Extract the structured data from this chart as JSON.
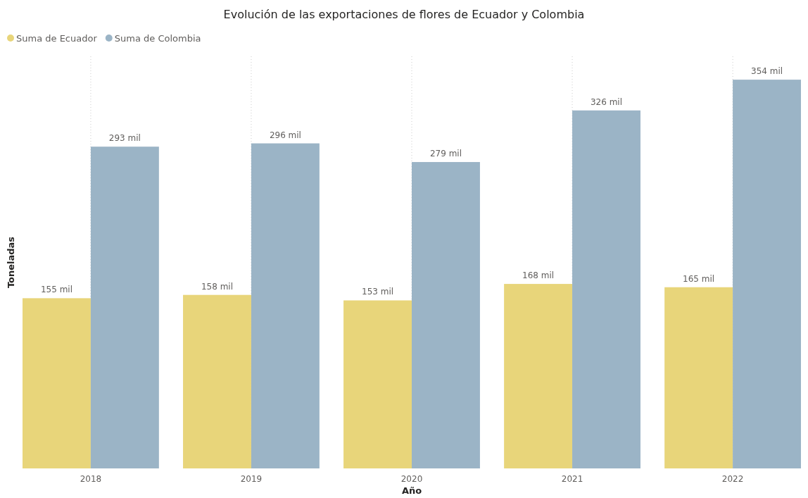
{
  "chart_data": {
    "type": "bar",
    "title": "Evolución de las exportaciones de flores de Ecuador y Colombia",
    "xlabel": "Año",
    "ylabel": "Toneladas",
    "categories": [
      "2018",
      "2019",
      "2020",
      "2021",
      "2022"
    ],
    "series": [
      {
        "name": "Suma de Ecuador",
        "color": "#e8d57a",
        "values": [
          155,
          158,
          153,
          168,
          165
        ],
        "value_labels": [
          "155 mil",
          "158 mil",
          "153 mil",
          "168 mil",
          "165 mil"
        ]
      },
      {
        "name": "Suma de Colombia",
        "color": "#9bb4c6",
        "values": [
          293,
          296,
          279,
          326,
          354
        ],
        "value_labels": [
          "293 mil",
          "296 mil",
          "279 mil",
          "326 mil",
          "354 mil"
        ]
      }
    ],
    "grid": "x",
    "legend": "top left"
  }
}
